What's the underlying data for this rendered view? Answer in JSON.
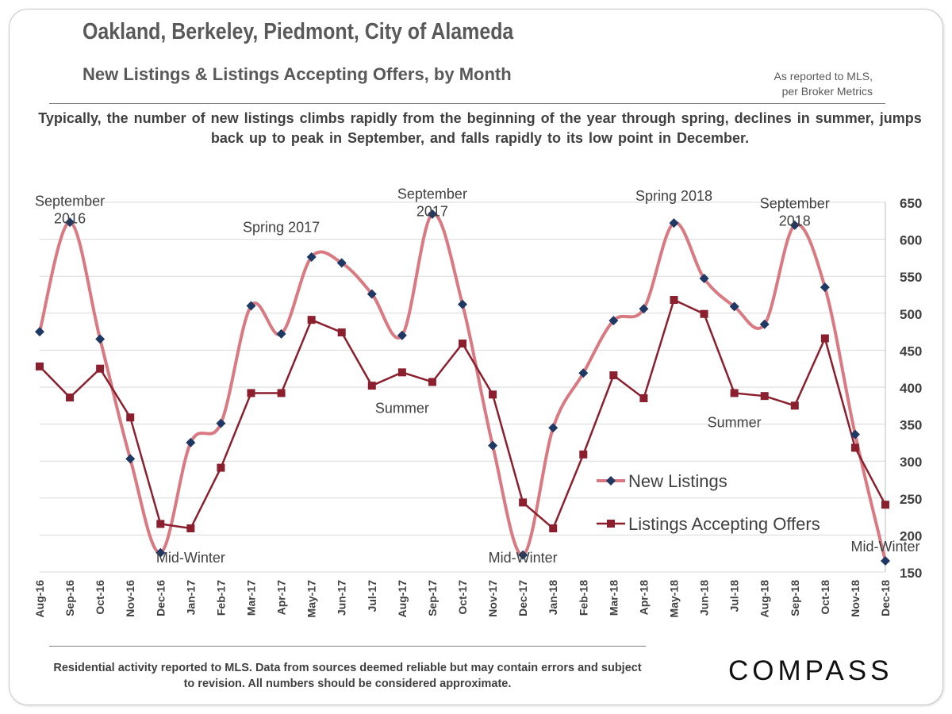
{
  "header": {
    "title": "Oakland, Berkeley, Piedmont, City of Alameda",
    "subtitle": "New Listings & Listings Accepting Offers, by Month",
    "source_note": "As reported to MLS,\nper Broker Metrics",
    "description": "Typically, the number of new listings climbs rapidly from the beginning of the year through spring, declines in summer, jumps back up to peak in September, and falls rapidly to its low point in December."
  },
  "footer": {
    "disclaimer": "Residential activity reported to MLS. Data from sources deemed reliable but may contain errors and subject to revision. All numbers should be considered approximate.",
    "logo_text": "COMPASS"
  },
  "colors": {
    "new_listings_line": "#d97a82",
    "new_listings_marker": "#1f3864",
    "offers_line": "#8b1f2e",
    "offers_marker": "#8b1f2e",
    "gridline": "#d9d9d9",
    "axis_text": "#404040",
    "annotation_text": "#404040"
  },
  "chart_data": {
    "type": "line",
    "categories": [
      "Aug-16",
      "Sep-16",
      "Oct-16",
      "Nov-16",
      "Dec-16",
      "Jan-17",
      "Feb-17",
      "Mar-17",
      "Apr-17",
      "May-17",
      "Jun-17",
      "Jul-17",
      "Aug-17",
      "Sep-17",
      "Oct-17",
      "Nov-17",
      "Dec-17",
      "Jan-18",
      "Feb-18",
      "Mar-18",
      "Apr-18",
      "May-18",
      "Jun-18",
      "Jul-18",
      "Aug-18",
      "Sep-18",
      "Oct-18",
      "Nov-18",
      "Dec-18"
    ],
    "series": [
      {
        "name": "New Listings",
        "smooth": true,
        "marker": "diamond",
        "values": [
          475,
          623,
          465,
          303,
          176,
          325,
          351,
          510,
          472,
          576,
          568,
          526,
          470,
          634,
          512,
          321,
          173,
          345,
          419,
          490,
          506,
          622,
          547,
          509,
          485,
          619,
          535,
          336,
          165
        ]
      },
      {
        "name": "Listings Accepting Offers",
        "smooth": false,
        "marker": "square",
        "values": [
          428,
          386,
          425,
          359,
          215,
          209,
          291,
          392,
          392,
          491,
          474,
          402,
          420,
          407,
          459,
          390,
          244,
          209,
          309,
          416,
          385,
          518,
          499,
          392,
          388,
          375,
          466,
          318,
          241
        ]
      }
    ],
    "y_axis": {
      "position": "right",
      "min": 150,
      "max": 650,
      "step": 50,
      "ticks": [
        "150",
        "200",
        "250",
        "300",
        "350",
        "400",
        "450",
        "500",
        "550",
        "600",
        "650"
      ]
    },
    "grid": true,
    "legend": {
      "placement": "bottom-right",
      "entries": [
        "New Listings",
        "Listings Accepting Offers"
      ]
    },
    "annotations": [
      {
        "text": "September\n2016",
        "category": "Sep-16",
        "y": 645
      },
      {
        "text": "Spring 2017",
        "category": "Apr-17",
        "y": 610
      },
      {
        "text": "September\n2017",
        "category": "Sep-17",
        "y": 655
      },
      {
        "text": "Summer",
        "category": "Aug-17",
        "y": 365
      },
      {
        "text": "Mid-Winter",
        "category": "Jan-17",
        "y": 163
      },
      {
        "text": "Mid-Winter",
        "category": "Dec-17",
        "y": 163
      },
      {
        "text": "Spring 2018",
        "category": "May-18",
        "y": 652
      },
      {
        "text": "September\n2018",
        "category": "Sep-18",
        "y": 642
      },
      {
        "text": "Summer",
        "category": "Jul-18",
        "y": 346
      },
      {
        "text": "Mid-Winter",
        "category": "Dec-18",
        "y": 178
      }
    ]
  }
}
